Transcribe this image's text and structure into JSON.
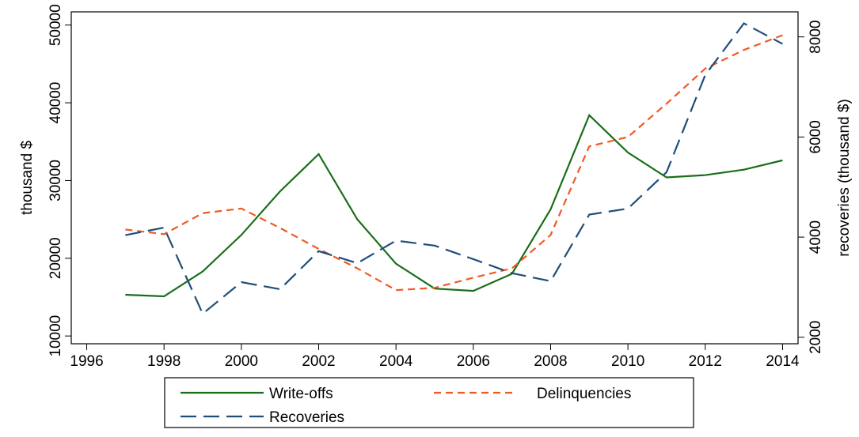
{
  "chart_data": {
    "type": "line",
    "y_label": "thousand $",
    "y2_label": "recoveries (thousand $)",
    "x": [
      1997,
      1998,
      1999,
      2000,
      2001,
      2002,
      2003,
      2004,
      2005,
      2006,
      2007,
      2008,
      2009,
      2010,
      2011,
      2012,
      2013,
      2014
    ],
    "series": [
      {
        "name": "Write-offs",
        "color": "#1a6e1a",
        "dash": "solid",
        "values": [
          15300,
          15100,
          18300,
          23000,
          28600,
          33400,
          25000,
          19300,
          16100,
          15800,
          18000,
          26300,
          38400,
          33600,
          30400,
          30700,
          31400,
          32600
        ]
      },
      {
        "name": "Delinquencies",
        "color": "#f05a24",
        "dash": "short",
        "values": [
          23700,
          23100,
          25800,
          26400,
          23900,
          21200,
          18700,
          15900,
          16200,
          17500,
          18700,
          23000,
          34400,
          35600,
          39900,
          44400,
          46800,
          48700
        ]
      },
      {
        "name": "Recoveries",
        "color": "#1f4e79",
        "dash": "long",
        "axis": "y2",
        "values": [
          4040,
          4190,
          2470,
          3100,
          2960,
          3720,
          3480,
          3930,
          3830,
          3560,
          3280,
          3120,
          4450,
          4570,
          5300,
          7240,
          8270,
          7860
        ]
      }
    ],
    "xlim": [
      1995.6,
      2014.4
    ],
    "xticks": [
      1996,
      1998,
      2000,
      2002,
      2004,
      2006,
      2008,
      2010,
      2012,
      2014
    ],
    "ylim": [
      9000,
      51700
    ],
    "yticks": [
      10000,
      20000,
      30000,
      40000,
      50000
    ],
    "y2lim": [
      1870,
      8500
    ],
    "y2ticks": [
      2000,
      4000,
      6000,
      8000
    ],
    "legend": "bottom"
  }
}
